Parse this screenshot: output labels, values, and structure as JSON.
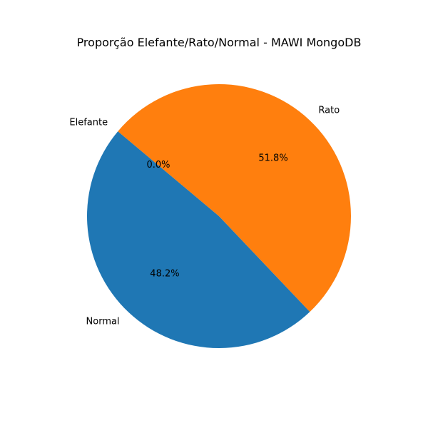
{
  "chart_data": {
    "type": "pie",
    "title": "Proporção Elefante/Rato/Normal - MAWI MongoDB",
    "start_angle_deg": 140,
    "direction": "counterclockwise",
    "slices": [
      {
        "label": "Elefante",
        "value": 0.0,
        "pct_label": "0.0%",
        "color": "#2ca02c"
      },
      {
        "label": "Normal",
        "value": 48.2,
        "pct_label": "48.2%",
        "color": "#1f77b4"
      },
      {
        "label": "Rato",
        "value": 51.8,
        "pct_label": "51.8%",
        "color": "#ff7f0e"
      }
    ]
  }
}
